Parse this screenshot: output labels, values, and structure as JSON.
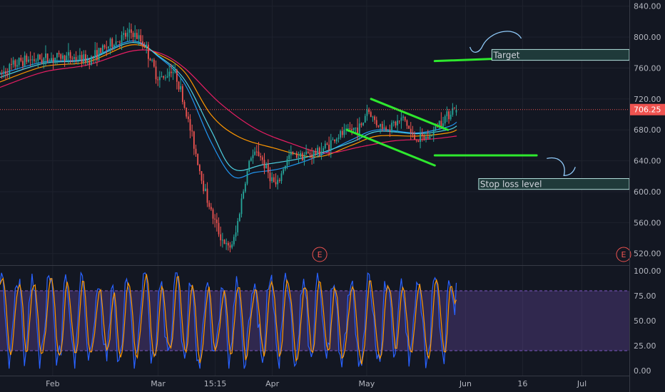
{
  "chart_data": [
    {
      "type": "candlestick",
      "y_ticks": [
        840,
        800,
        760,
        720,
        680,
        640,
        600,
        560,
        520
      ],
      "y_tick_labels": [
        "840.00",
        "800.00",
        "760.00",
        "720.00",
        "680.00",
        "640.00",
        "600.00",
        "560.00",
        "520.00"
      ],
      "ylim": [
        505,
        848
      ],
      "last_price": 706.25,
      "last_price_label": "706.25",
      "x_ticks": [
        {
          "label": "Feb",
          "x": 0.12
        },
        {
          "label": "Mar",
          "x": 0.36
        },
        {
          "label": "15:15",
          "x": 0.49
        },
        {
          "label": "Apr",
          "x": 0.62
        },
        {
          "label": "May",
          "x": 0.835
        },
        {
          "label": "Jun",
          "x": 1.06
        },
        {
          "label": "16",
          "x": 1.19
        },
        {
          "label": "Jul",
          "x": 1.325
        }
      ],
      "xlim": [
        0,
        1.433
      ],
      "price_path": [
        [
          0.0,
          752
        ],
        [
          0.05,
          770
        ],
        [
          0.1,
          772
        ],
        [
          0.15,
          775
        ],
        [
          0.2,
          770
        ],
        [
          0.25,
          790
        ],
        [
          0.3,
          806
        ],
        [
          0.33,
          790
        ],
        [
          0.355,
          752
        ],
        [
          0.37,
          745
        ],
        [
          0.39,
          760
        ],
        [
          0.405,
          745
        ],
        [
          0.42,
          710
        ],
        [
          0.44,
          665
        ],
        [
          0.46,
          615
        ],
        [
          0.48,
          575
        ],
        [
          0.5,
          545
        ],
        [
          0.52,
          525
        ],
        [
          0.535,
          540
        ],
        [
          0.55,
          590
        ],
        [
          0.57,
          645
        ],
        [
          0.59,
          650
        ],
        [
          0.61,
          625
        ],
        [
          0.63,
          605
        ],
        [
          0.645,
          630
        ],
        [
          0.66,
          648
        ],
        [
          0.69,
          648
        ],
        [
          0.72,
          650
        ],
        [
          0.75,
          662
        ],
        [
          0.77,
          672
        ],
        [
          0.8,
          680
        ],
        [
          0.825,
          685
        ],
        [
          0.835,
          708
        ],
        [
          0.855,
          690
        ],
        [
          0.875,
          682
        ],
        [
          0.9,
          688
        ],
        [
          0.92,
          695
        ],
        [
          0.94,
          670
        ],
        [
          0.96,
          668
        ],
        [
          0.98,
          672
        ],
        [
          1.0,
          690
        ],
        [
          1.02,
          700
        ],
        [
          1.035,
          710
        ]
      ],
      "moving_averages": [
        {
          "color": "#2196f3",
          "points": [
            [
              0.0,
              752
            ],
            [
              0.1,
              768
            ],
            [
              0.2,
              772
            ],
            [
              0.3,
              795
            ],
            [
              0.36,
              775
            ],
            [
              0.42,
              740
            ],
            [
              0.48,
              665
            ],
            [
              0.53,
              620
            ],
            [
              0.58,
              625
            ],
            [
              0.64,
              630
            ],
            [
              0.72,
              645
            ],
            [
              0.8,
              667
            ],
            [
              0.86,
              680
            ],
            [
              0.95,
              676
            ],
            [
              1.02,
              684
            ],
            [
              1.04,
              690
            ]
          ]
        },
        {
          "color": "#ff9800",
          "points": [
            [
              0.0,
              742
            ],
            [
              0.1,
              762
            ],
            [
              0.2,
              768
            ],
            [
              0.3,
              790
            ],
            [
              0.36,
              778
            ],
            [
              0.42,
              755
            ],
            [
              0.48,
              700
            ],
            [
              0.54,
              672
            ],
            [
              0.62,
              657
            ],
            [
              0.72,
              645
            ],
            [
              0.8,
              660
            ],
            [
              0.86,
              672
            ],
            [
              0.95,
              672
            ],
            [
              1.02,
              676
            ],
            [
              1.04,
              680
            ]
          ]
        },
        {
          "color": "#e91e63",
          "points": [
            [
              0.0,
              735
            ],
            [
              0.1,
              755
            ],
            [
              0.2,
              764
            ],
            [
              0.3,
              782
            ],
            [
              0.36,
              780
            ],
            [
              0.42,
              760
            ],
            [
              0.5,
              715
            ],
            [
              0.58,
              682
            ],
            [
              0.66,
              663
            ],
            [
              0.74,
              650
            ],
            [
              0.82,
              658
            ],
            [
              0.9,
              666
            ],
            [
              0.98,
              668
            ],
            [
              1.04,
              672
            ]
          ]
        },
        {
          "color": "#4dd0e1",
          "points": [
            [
              0.0,
              748
            ],
            [
              0.1,
              766
            ],
            [
              0.2,
              771
            ],
            [
              0.3,
              793
            ],
            [
              0.36,
              776
            ],
            [
              0.42,
              745
            ],
            [
              0.48,
              680
            ],
            [
              0.53,
              630
            ],
            [
              0.6,
              635
            ],
            [
              0.7,
              645
            ],
            [
              0.8,
              664
            ],
            [
              0.86,
              678
            ],
            [
              0.95,
              675
            ],
            [
              1.02,
              680
            ],
            [
              1.04,
              685
            ]
          ]
        }
      ],
      "drawings": {
        "channel_upper": [
          [
            0.845,
            720
          ],
          [
            1.02,
            680
          ]
        ],
        "channel_lower": [
          [
            0.79,
            680
          ],
          [
            0.99,
            634
          ]
        ],
        "target_line": [
          [
            0.99,
            769
          ],
          [
            1.22,
            774
          ]
        ],
        "stop_line": [
          [
            0.99,
            647
          ],
          [
            1.222,
            647
          ]
        ],
        "target_box": {
          "label": "Target",
          "x": [
            1.12,
            1.433
          ],
          "y": [
            770,
            784
          ]
        },
        "stop_box": {
          "label": "Stop loss level",
          "x": [
            1.09,
            1.433
          ],
          "y": [
            603,
            617
          ]
        },
        "earnings_marker_label": "E",
        "earnings_markers_x": [
          0.728,
          1.42
        ]
      }
    },
    {
      "type": "oscillator",
      "y_ticks": [
        100,
        75,
        50,
        25,
        0
      ],
      "y_tick_labels": [
        "100.00",
        "75.00",
        "50.00",
        "25.00",
        "0.00"
      ],
      "ylim": [
        -5,
        105
      ],
      "band": [
        20,
        80
      ],
      "k_color": "#2962ff",
      "d_color": "#ff9800",
      "band_color": "#7e57c2"
    }
  ]
}
